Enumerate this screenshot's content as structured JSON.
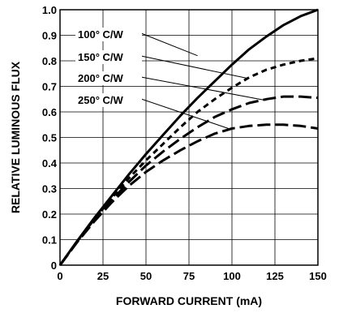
{
  "chart_data": {
    "type": "line",
    "xlabel": "FORWARD CURRENT (mA)",
    "ylabel": "RELATIVE LUMINOUS FLUX",
    "xlim": [
      0,
      150
    ],
    "ylim": [
      0,
      1.0
    ],
    "x_ticks": [
      "0",
      "25",
      "50",
      "75",
      "100",
      "125",
      "150"
    ],
    "y_ticks": [
      "0",
      "0.1",
      "0.2",
      "0.3",
      "0.4",
      "0.5",
      "0.6",
      "0.7",
      "0.8",
      "0.9",
      "1.0"
    ],
    "grid": true,
    "series": [
      {
        "name": "100° C/W",
        "style": "solid",
        "x": [
          0,
          10,
          20,
          30,
          40,
          50,
          60,
          70,
          80,
          90,
          100,
          110,
          120,
          130,
          140,
          150
        ],
        "y": [
          0,
          0.095,
          0.185,
          0.27,
          0.355,
          0.435,
          0.51,
          0.585,
          0.655,
          0.72,
          0.785,
          0.845,
          0.895,
          0.94,
          0.975,
          1.0
        ],
        "label_anchor": [
          80,
          0.82
        ]
      },
      {
        "name": "150° C/W",
        "style": "short-dash",
        "x": [
          0,
          10,
          20,
          30,
          40,
          50,
          60,
          70,
          80,
          90,
          100,
          110,
          120,
          130,
          140,
          150
        ],
        "y": [
          0,
          0.093,
          0.18,
          0.262,
          0.34,
          0.41,
          0.475,
          0.54,
          0.6,
          0.65,
          0.695,
          0.735,
          0.765,
          0.785,
          0.8,
          0.81
        ],
        "label_anchor": [
          110,
          0.73
        ]
      },
      {
        "name": "200° C/W",
        "style": "long-dash",
        "x": [
          0,
          10,
          20,
          30,
          40,
          50,
          60,
          70,
          80,
          90,
          100,
          110,
          120,
          130,
          140,
          150
        ],
        "y": [
          0,
          0.092,
          0.177,
          0.255,
          0.325,
          0.39,
          0.445,
          0.495,
          0.54,
          0.58,
          0.61,
          0.635,
          0.65,
          0.66,
          0.66,
          0.655
        ],
        "label_anchor": [
          120,
          0.645
        ]
      },
      {
        "name": "250° C/W",
        "style": "long-dash",
        "x": [
          0,
          10,
          20,
          30,
          40,
          50,
          60,
          70,
          80,
          90,
          100,
          110,
          120,
          130,
          140,
          150
        ],
        "y": [
          0,
          0.09,
          0.172,
          0.245,
          0.31,
          0.365,
          0.41,
          0.45,
          0.485,
          0.515,
          0.535,
          0.545,
          0.55,
          0.55,
          0.545,
          0.535
        ],
        "label_anchor": [
          98,
          0.535
        ]
      }
    ]
  },
  "colors": {
    "line": "#000000",
    "grid": "#000000",
    "background": "#ffffff"
  }
}
